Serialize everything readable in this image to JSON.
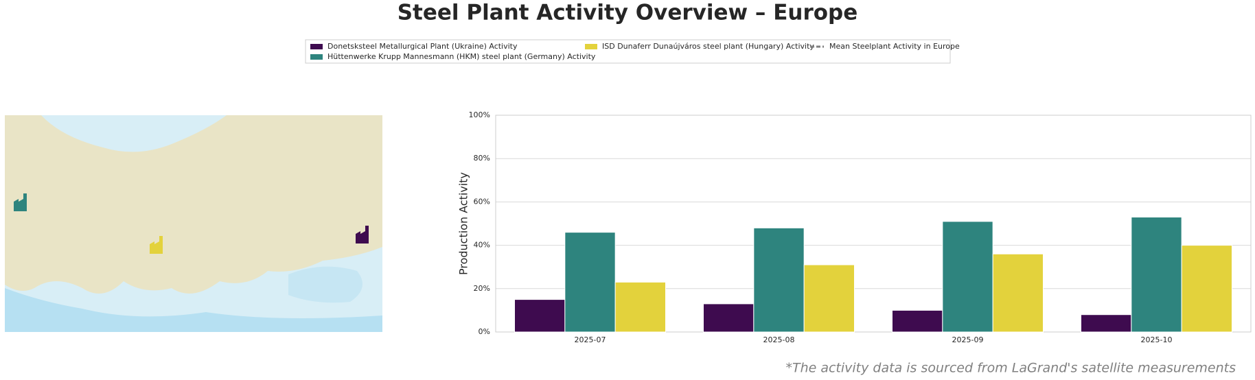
{
  "chart_data": {
    "type": "bar",
    "title": "Steel Plant Activity Overview – Europe",
    "y_label": "Production Activity",
    "footnote": "*The activity data is sourced from LaGrand's satellite measurements",
    "categories": [
      "2025-07",
      "2025-08",
      "2025-09",
      "2025-10"
    ],
    "series": [
      {
        "name": "Donetsksteel Metallurgical Plant (Ukraine) Activity",
        "color": "#3e0b4f",
        "values": [
          15,
          13,
          10,
          8
        ]
      },
      {
        "name": "Hüttenwerke Krupp Mannesmann (HKM) steel plant (Germany) Activity",
        "color": "#2e847e",
        "values": [
          46,
          48,
          51,
          53
        ]
      },
      {
        "name": "ISD Dunaferr Dunaújváros steel plant (Hungary) Activity",
        "color": "#e3d23c",
        "values": [
          23,
          31,
          36,
          40
        ]
      }
    ],
    "mean_line": {
      "name": "Mean Steelplant Activity in Europe",
      "color": "#808080"
    },
    "ylim": [
      0,
      100
    ],
    "yticks": [
      {
        "value": 0,
        "label": "0%"
      },
      {
        "value": 20,
        "label": "20%"
      },
      {
        "value": 40,
        "label": "40%"
      },
      {
        "value": 60,
        "label": "60%"
      },
      {
        "value": 80,
        "label": "80%"
      },
      {
        "value": 100,
        "label": "100%"
      }
    ],
    "grid": true
  }
}
